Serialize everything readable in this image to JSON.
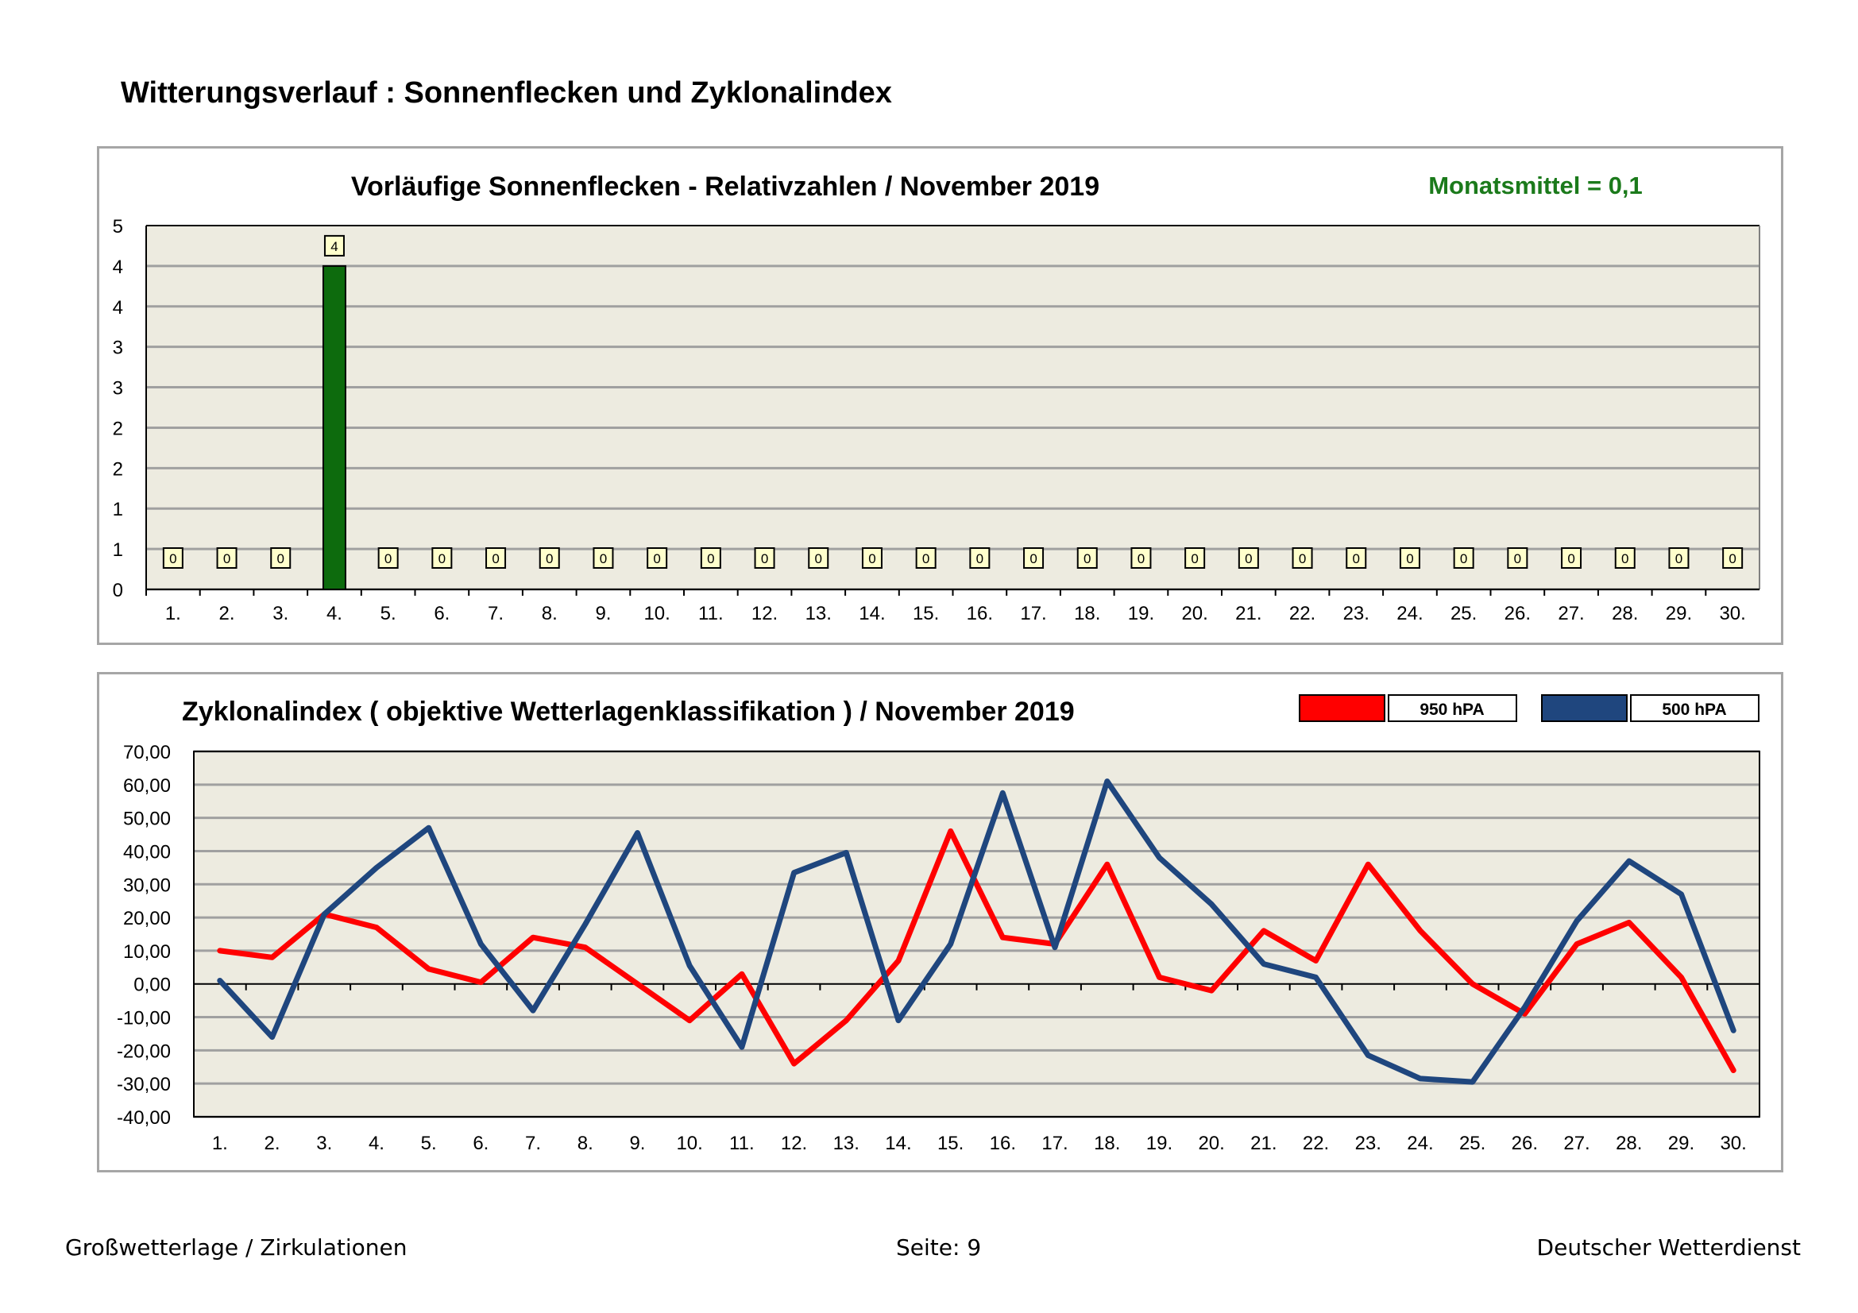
{
  "page": {
    "title": "Witterungsverlauf : Sonnenflecken und Zyklonalindex"
  },
  "footer": {
    "left": "Großwetterlage / Zirkulationen",
    "center": "Seite: 9",
    "right": "Deutscher Wetterdienst"
  },
  "colors": {
    "plot_bg": "#edebe0",
    "grid": "#a0a0a0",
    "bar": "#0d6b0d",
    "red": "#ff0000",
    "blue": "#1f467e",
    "mean_text": "#1b7a1b",
    "label_box": "#ffffcc"
  },
  "chart_data": [
    {
      "type": "bar",
      "title": "Vorläufige Sonnenflecken - Relativzahlen  /   November 2019",
      "annotation": "Monatsmittel = 0,1",
      "categories": [
        "1.",
        "2.",
        "3.",
        "4.",
        "5.",
        "6.",
        "7.",
        "8.",
        "9.",
        "10.",
        "11.",
        "12.",
        "13.",
        "14.",
        "15.",
        "16.",
        "17.",
        "18.",
        "19.",
        "20.",
        "21.",
        "22.",
        "23.",
        "24.",
        "25.",
        "26.",
        "27.",
        "28.",
        "29.",
        "30."
      ],
      "values": [
        0,
        0,
        0,
        4,
        0,
        0,
        0,
        0,
        0,
        0,
        0,
        0,
        0,
        0,
        0,
        0,
        0,
        0,
        0,
        0,
        0,
        0,
        0,
        0,
        0,
        0,
        0,
        0,
        0,
        0
      ],
      "data_labels": [
        "0",
        "0",
        "0",
        "4",
        "0",
        "0",
        "0",
        "0",
        "0",
        "0",
        "0",
        "0",
        "0",
        "0",
        "0",
        "0",
        "0",
        "0",
        "0",
        "0",
        "0",
        "0",
        "0",
        "0",
        "0",
        "0",
        "0",
        "0",
        "0",
        "0"
      ],
      "ylim": [
        0,
        4.5
      ],
      "yticks": [
        0,
        0.5,
        1,
        1.5,
        2,
        2.5,
        3,
        3.5,
        4,
        4.5
      ],
      "ytick_labels": [
        "0",
        "1",
        "1",
        "2",
        "2",
        "3",
        "3",
        "4",
        "4",
        "5"
      ],
      "xlabel": "",
      "ylabel": "",
      "grid": true
    },
    {
      "type": "line",
      "title": "Zyklonalindex  ( objektive Wetterlagenklassifikation )  /  November 2019",
      "categories": [
        "1.",
        "2.",
        "3.",
        "4.",
        "5.",
        "6.",
        "7.",
        "8.",
        "9.",
        "10.",
        "11.",
        "12.",
        "13.",
        "14.",
        "15.",
        "16.",
        "17.",
        "18.",
        "19.",
        "20.",
        "21.",
        "22.",
        "23.",
        "24.",
        "25.",
        "26.",
        "27.",
        "28.",
        "29.",
        "30."
      ],
      "series": [
        {
          "name": "950 hPA",
          "color": "#ff0000",
          "values": [
            10,
            8,
            21,
            17,
            4.5,
            0.5,
            14,
            11,
            0,
            -11,
            3,
            -24,
            -11,
            7,
            46,
            14,
            12,
            36,
            2,
            -2,
            16,
            7,
            36,
            16,
            0,
            -9,
            12,
            18.5,
            2,
            -26
          ]
        },
        {
          "name": "500 hPA",
          "color": "#1f467e",
          "values": [
            1,
            -16,
            21,
            35,
            47,
            12,
            -8,
            18,
            45.5,
            5.5,
            -19,
            33.5,
            39.5,
            -11,
            12,
            57.5,
            11,
            61,
            38,
            24,
            6,
            2,
            -21.5,
            -28.5,
            -29.5,
            -7,
            19,
            37,
            27,
            -14
          ]
        }
      ],
      "ylim": [
        -40,
        70
      ],
      "yticks": [
        -40,
        -30,
        -20,
        -10,
        0,
        10,
        20,
        30,
        40,
        50,
        60,
        70
      ],
      "ytick_labels": [
        "-40,00",
        "-30,00",
        "-20,00",
        "-10,00",
        "0,00",
        "10,00",
        "20,00",
        "30,00",
        "40,00",
        "50,00",
        "60,00",
        "70,00"
      ],
      "xlabel": "",
      "ylabel": "",
      "grid": true,
      "legend_position": "top-right"
    }
  ]
}
